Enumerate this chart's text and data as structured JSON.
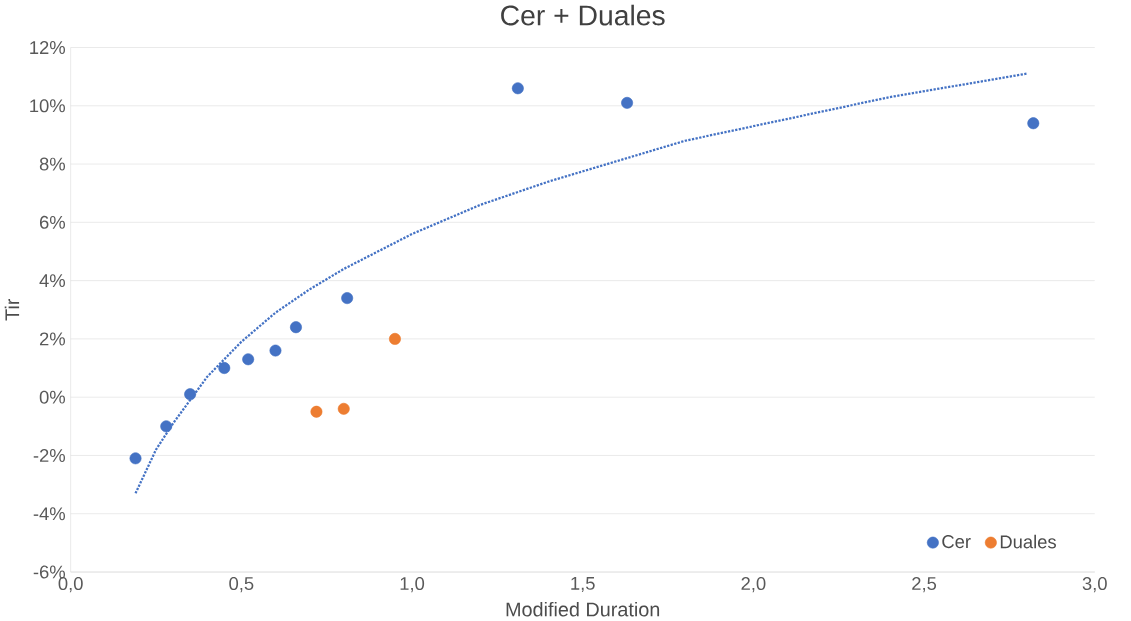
{
  "chart_data": {
    "type": "scatter",
    "title": "Cer + Duales",
    "xlabel": "Modified Duration",
    "ylabel": "Tir",
    "xlim": [
      0,
      3
    ],
    "ylim": [
      -6,
      12
    ],
    "xticks": [
      {
        "value": 0,
        "label": "0,0"
      },
      {
        "value": 0.5,
        "label": "0,5"
      },
      {
        "value": 1,
        "label": "1,0"
      },
      {
        "value": 1.5,
        "label": "1,5"
      },
      {
        "value": 2,
        "label": "2,0"
      },
      {
        "value": 2.5,
        "label": "2,5"
      },
      {
        "value": 3,
        "label": "3,0"
      }
    ],
    "yticks": [
      {
        "value": -6,
        "label": "-6%"
      },
      {
        "value": -4,
        "label": "-4%"
      },
      {
        "value": -2,
        "label": "-2%"
      },
      {
        "value": 0,
        "label": "0%"
      },
      {
        "value": 2,
        "label": "2%"
      },
      {
        "value": 4,
        "label": "4%"
      },
      {
        "value": 6,
        "label": "6%"
      },
      {
        "value": 8,
        "label": "8%"
      },
      {
        "value": 10,
        "label": "10%"
      },
      {
        "value": 12,
        "label": "12%"
      }
    ],
    "grid": "y",
    "legend": "bottom right",
    "marker": "circle",
    "series": [
      {
        "name": "Cer",
        "color": "#4472c4",
        "x": [
          0.19,
          0.28,
          0.35,
          0.45,
          0.52,
          0.6,
          0.66,
          0.81,
          1.31,
          1.63,
          2.82
        ],
        "values": [
          -2.1,
          -1.0,
          0.1,
          1.0,
          1.3,
          1.6,
          2.4,
          3.4,
          10.6,
          10.1,
          9.4
        ]
      },
      {
        "name": "Duales",
        "color": "#ed7d31",
        "x": [
          0.72,
          0.8,
          0.95
        ],
        "values": [
          -0.5,
          -0.4,
          2.0
        ]
      },
      {
        "type": "line",
        "color": "#4472c4",
        "line_style": "dotted",
        "marker": "none",
        "x": [
          0.19,
          0.25,
          0.3,
          0.35,
          0.4,
          0.5,
          0.6,
          0.7,
          0.8,
          1.0,
          1.2,
          1.4,
          1.6,
          1.8,
          2.0,
          2.2,
          2.4,
          2.6,
          2.8
        ],
        "values": [
          -3.3,
          -1.8,
          -0.9,
          -0.1,
          0.7,
          1.9,
          2.9,
          3.7,
          4.4,
          5.6,
          6.6,
          7.4,
          8.1,
          8.8,
          9.3,
          9.8,
          10.3,
          10.7,
          11.1
        ]
      }
    ]
  }
}
